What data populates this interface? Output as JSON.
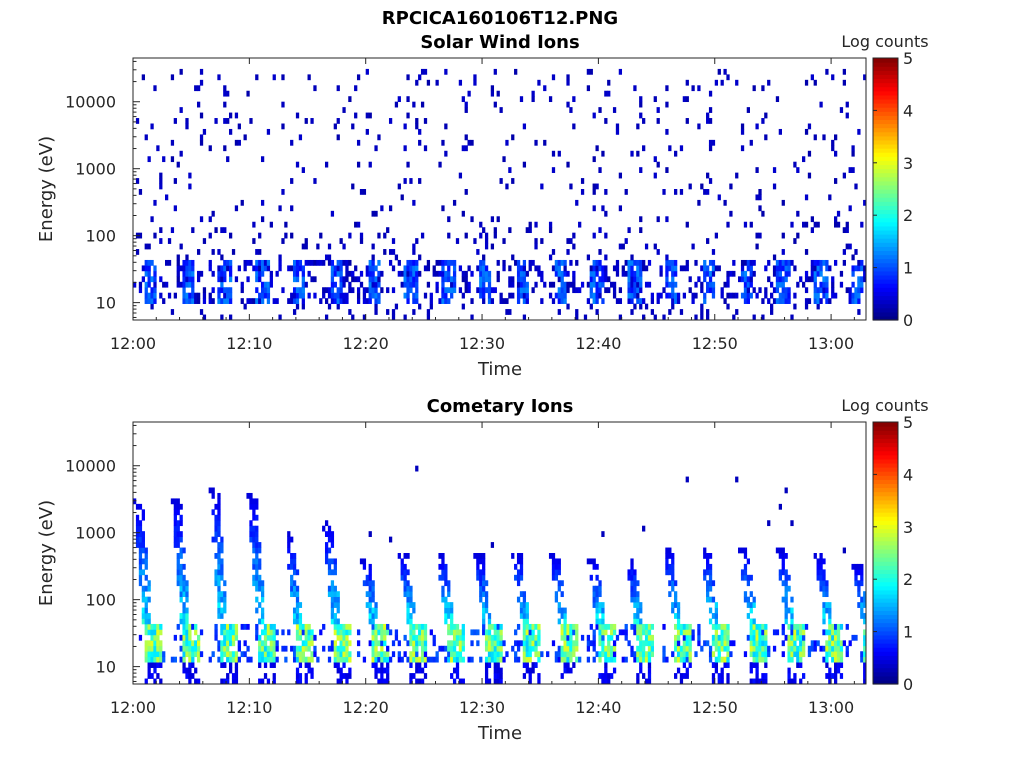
{
  "figure": {
    "title": "RPCICA160106T12.PNG"
  },
  "chart_data": [
    {
      "type": "heatmap",
      "title": "Solar Wind Ions",
      "xlabel": "Time",
      "ylabel": "Energy (eV)",
      "x_ticks": [
        "12:00",
        "12:10",
        "12:20",
        "12:30",
        "12:40",
        "12:50",
        "13:00"
      ],
      "x_range_minutes": [
        0,
        63
      ],
      "y_ticks": [
        "10",
        "100",
        "1000",
        "10000"
      ],
      "y_scale": "log",
      "y_range_eV": [
        5.5,
        45000
      ],
      "colorbar": {
        "label": "Log counts",
        "ticks": [
          "0",
          "1",
          "2",
          "3",
          "4",
          "5"
        ],
        "range": [
          0,
          5
        ],
        "colormap": "jet"
      },
      "pattern": {
        "sweep_period_min": 3.2,
        "low_energy_band_eV": [
          10,
          40
        ],
        "low_energy_band_peak_log_counts": 1.3,
        "scattered_background_log_counts": 0.3,
        "background_energy_range_eV": [
          40,
          30000
        ]
      }
    },
    {
      "type": "heatmap",
      "title": "Cometary Ions",
      "xlabel": "Time",
      "ylabel": "Energy (eV)",
      "x_ticks": [
        "12:00",
        "12:10",
        "12:20",
        "12:30",
        "12:40",
        "12:50",
        "13:00"
      ],
      "x_range_minutes": [
        0,
        63
      ],
      "y_ticks": [
        "10",
        "100",
        "1000",
        "10000"
      ],
      "y_scale": "log",
      "y_range_eV": [
        5.5,
        45000
      ],
      "colorbar": {
        "label": "Log counts",
        "ticks": [
          "0",
          "1",
          "2",
          "3",
          "4",
          "5"
        ],
        "range": [
          0,
          5
        ],
        "colormap": "jet"
      },
      "pattern": {
        "sweep_period_min": 3.25,
        "low_energy_band_eV": [
          12,
          40
        ],
        "low_energy_band_peak_log_counts": 3.0,
        "spike_peak_energy_eV": [
          3500,
          3500,
          4500,
          4000,
          1000,
          1500,
          400,
          500,
          500,
          500,
          500,
          500,
          400,
          400,
          600,
          600,
          600,
          600,
          500,
          350,
          300
        ],
        "spike_intensity_log_counts": 1.8,
        "sparse_high_energy_counts_eV": [
          3000,
          10000
        ]
      }
    }
  ]
}
